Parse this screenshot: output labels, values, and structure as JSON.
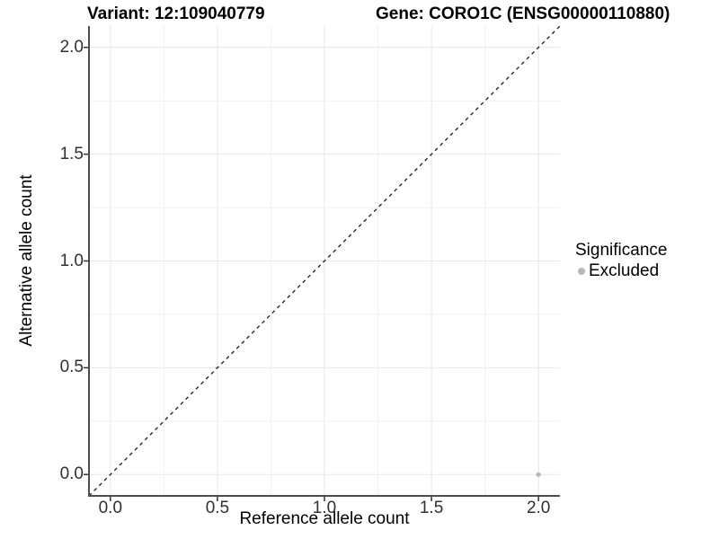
{
  "chart_data": {
    "type": "scatter",
    "title_left": "Variant: 12:109040779",
    "title_right": "Gene: CORO1C (ENSG00000110880)",
    "xlabel": "Reference allele count",
    "ylabel": "Alternative allele count",
    "xlim": [
      -0.1,
      2.1
    ],
    "ylim": [
      -0.1,
      2.1
    ],
    "x_ticks": [
      0.0,
      0.5,
      1.0,
      1.5,
      2.0
    ],
    "y_ticks": [
      0.0,
      0.5,
      1.0,
      1.5,
      2.0
    ],
    "x_tick_labels": [
      "0.0",
      "0.5",
      "1.0",
      "1.5",
      "2.0"
    ],
    "y_tick_labels": [
      "0.0",
      "0.5",
      "1.0",
      "1.5",
      "2.0"
    ],
    "grid": true,
    "minor_grid_step": 0.25,
    "identity_line": {
      "style": "dashed",
      "color": "#1a1a1a",
      "from": [
        -0.1,
        -0.1
      ],
      "to": [
        2.1,
        2.1
      ]
    },
    "series": [
      {
        "name": "Excluded",
        "color": "#b8b8b8",
        "points": [
          [
            2.0,
            0.0
          ]
        ]
      }
    ],
    "legend": {
      "title": "Significance",
      "position": "right",
      "items": [
        {
          "label": "Excluded",
          "color": "#b8b8b8",
          "marker": "circle"
        }
      ]
    },
    "colors": {
      "axis_line": "#4d4d4d",
      "tick_mark": "#333333",
      "grid_major": "#e7e7e7",
      "grid_minor": "#f0f0f0",
      "background": "#ffffff"
    }
  }
}
